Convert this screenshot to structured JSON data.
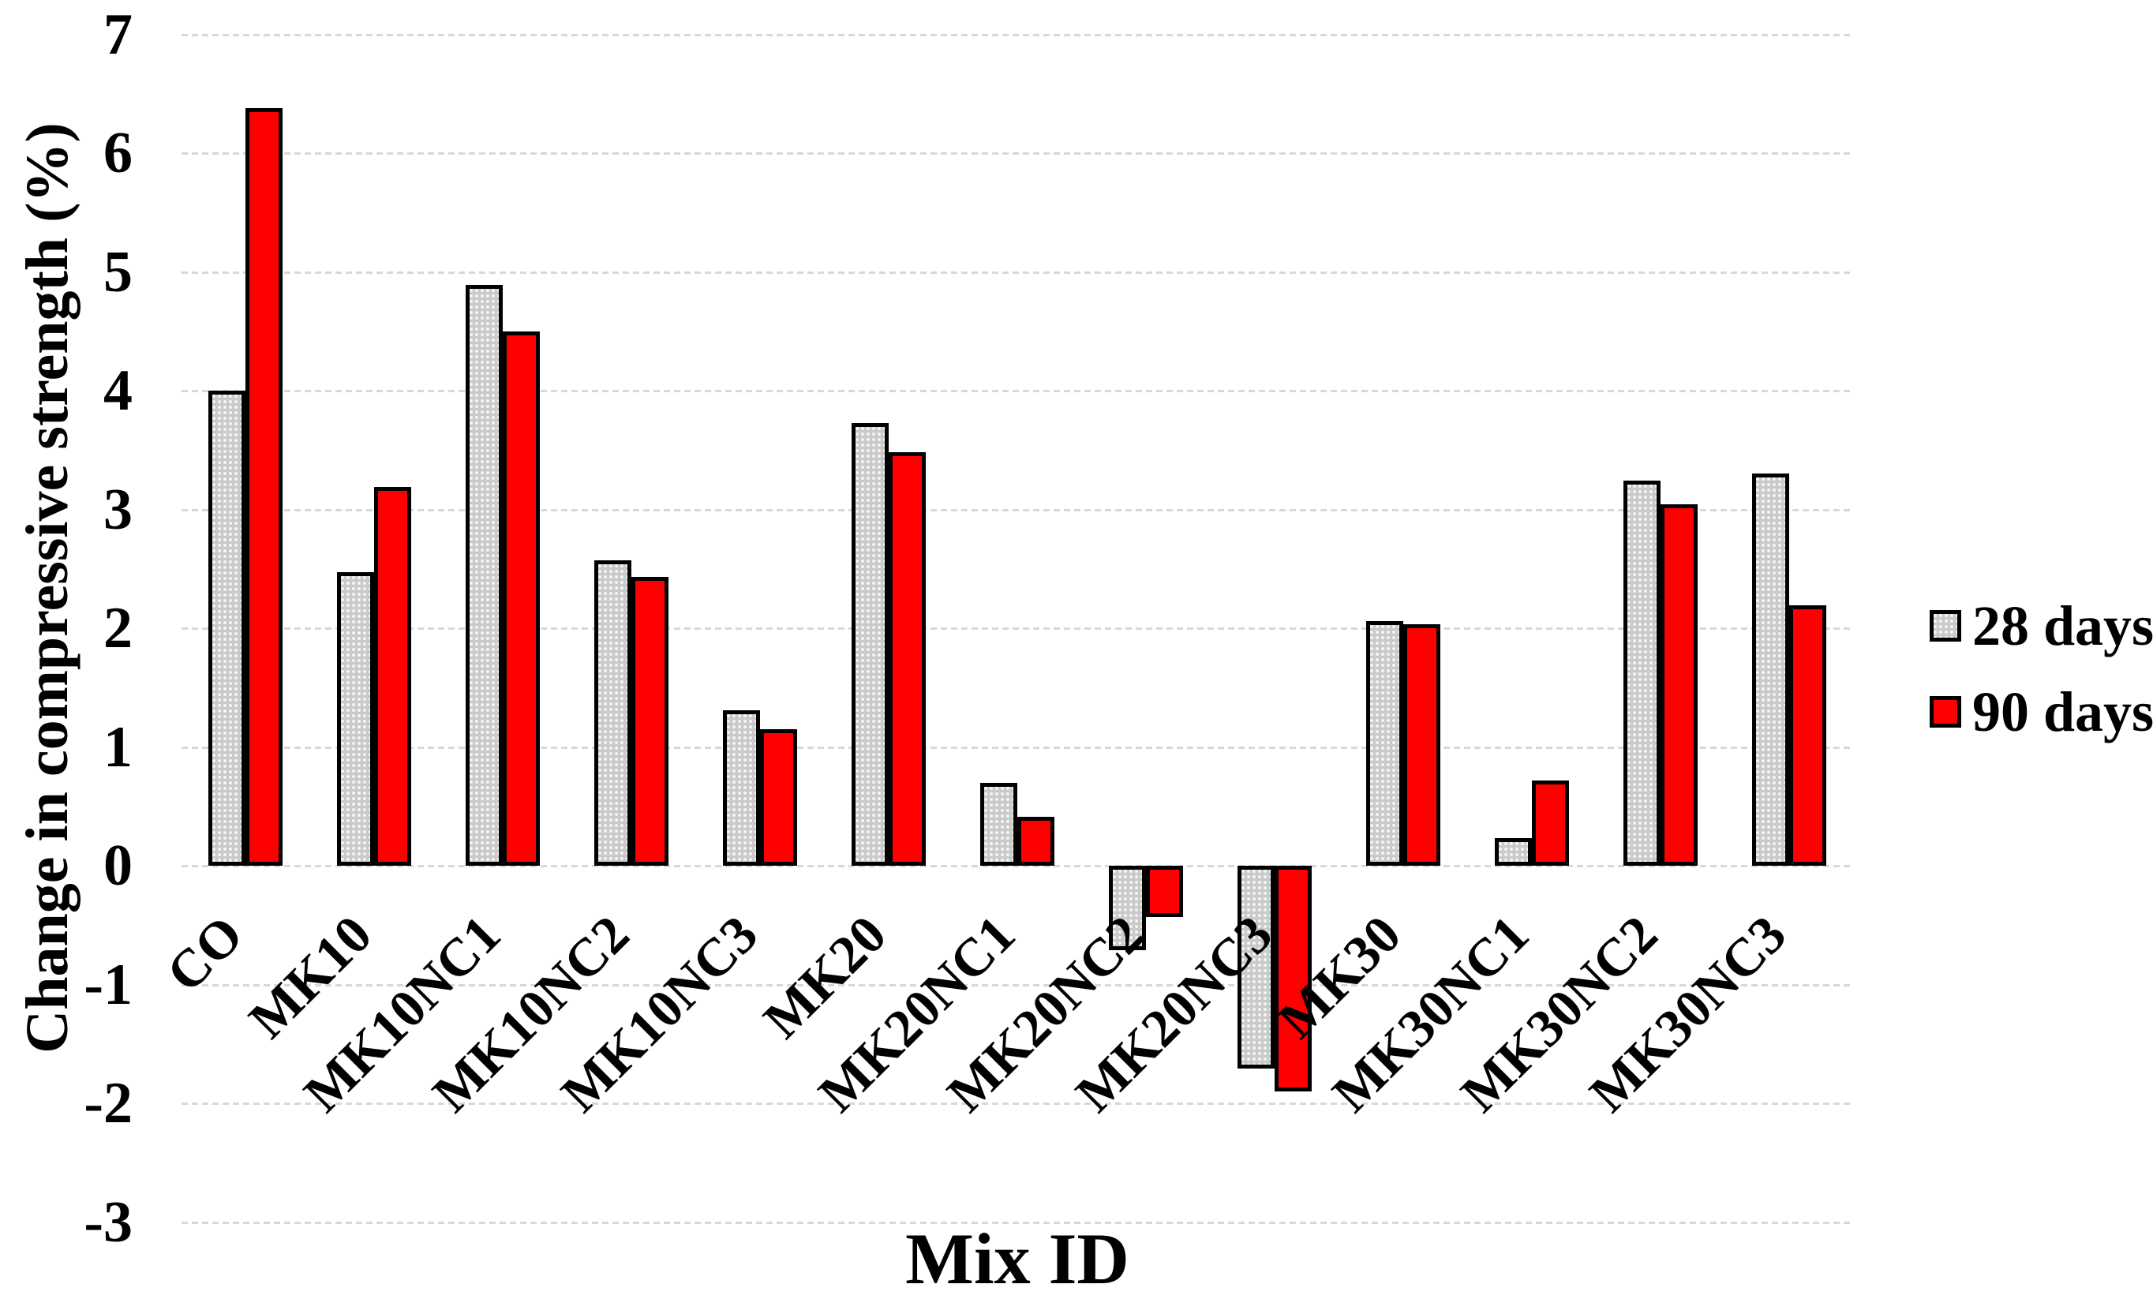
{
  "chart_data": {
    "type": "bar",
    "title": "",
    "xlabel": "Mix ID",
    "ylabel": "Change in compressive strength (%)",
    "categories": [
      "CO",
      "MK10",
      "MK10NC1",
      "MK10NC2",
      "MK10NC3",
      "MK20",
      "MK20NC1",
      "MK20NC2",
      "MK20NC3",
      "MK30",
      "MK30NC1",
      "MK30NC2",
      "MK30NC3"
    ],
    "series": [
      {
        "name": "28 days",
        "color": "#c9cbca",
        "pattern": "dotted-gray",
        "values": [
          4.0,
          2.47,
          4.89,
          2.57,
          1.31,
          3.73,
          0.7,
          -0.71,
          -1.71,
          2.06,
          0.23,
          3.24,
          3.3
        ]
      },
      {
        "name": "90 days",
        "color": "#fe0000",
        "pattern": "solid-red",
        "values": [
          6.38,
          3.19,
          4.5,
          2.43,
          1.15,
          3.48,
          0.41,
          -0.43,
          -1.9,
          2.03,
          0.72,
          3.04,
          2.19
        ]
      }
    ],
    "y_ticks": [
      7,
      6,
      5,
      4,
      3,
      2,
      1,
      0,
      -1,
      -2,
      -3
    ],
    "ylim": [
      -3,
      7
    ],
    "grid": true,
    "legend_position": "right",
    "colors": {
      "grid": "#d8d8d8",
      "bar_border": "#000000",
      "background": "#ffffff",
      "text": "#000000"
    }
  }
}
